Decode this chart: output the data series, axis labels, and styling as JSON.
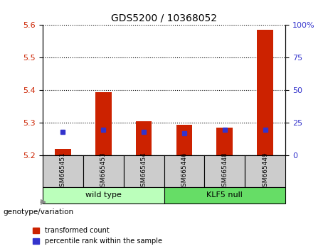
{
  "title": "GDS5200 / 10368052",
  "categories": [
    "GSM665451",
    "GSM665453",
    "GSM665454",
    "GSM665446",
    "GSM665448",
    "GSM665449"
  ],
  "group_labels": [
    "wild type",
    "KLF5 null"
  ],
  "transformed_counts": [
    5.22,
    5.395,
    5.305,
    5.295,
    5.285,
    5.585
  ],
  "percentile_ranks": [
    18,
    20,
    18,
    17,
    20,
    20
  ],
  "y_min": 5.2,
  "y_max": 5.6,
  "y_ticks": [
    5.2,
    5.3,
    5.4,
    5.5,
    5.6
  ],
  "right_y_ticks": [
    0,
    25,
    50,
    75,
    100
  ],
  "right_y_labels": [
    "0",
    "25",
    "50",
    "75",
    "100%"
  ],
  "bar_color": "#cc2200",
  "blue_color": "#3333cc",
  "group_colors": [
    "#bbffbb",
    "#66dd66"
  ],
  "bg_color": "#cccccc",
  "legend_items": [
    "transformed count",
    "percentile rank within the sample"
  ]
}
